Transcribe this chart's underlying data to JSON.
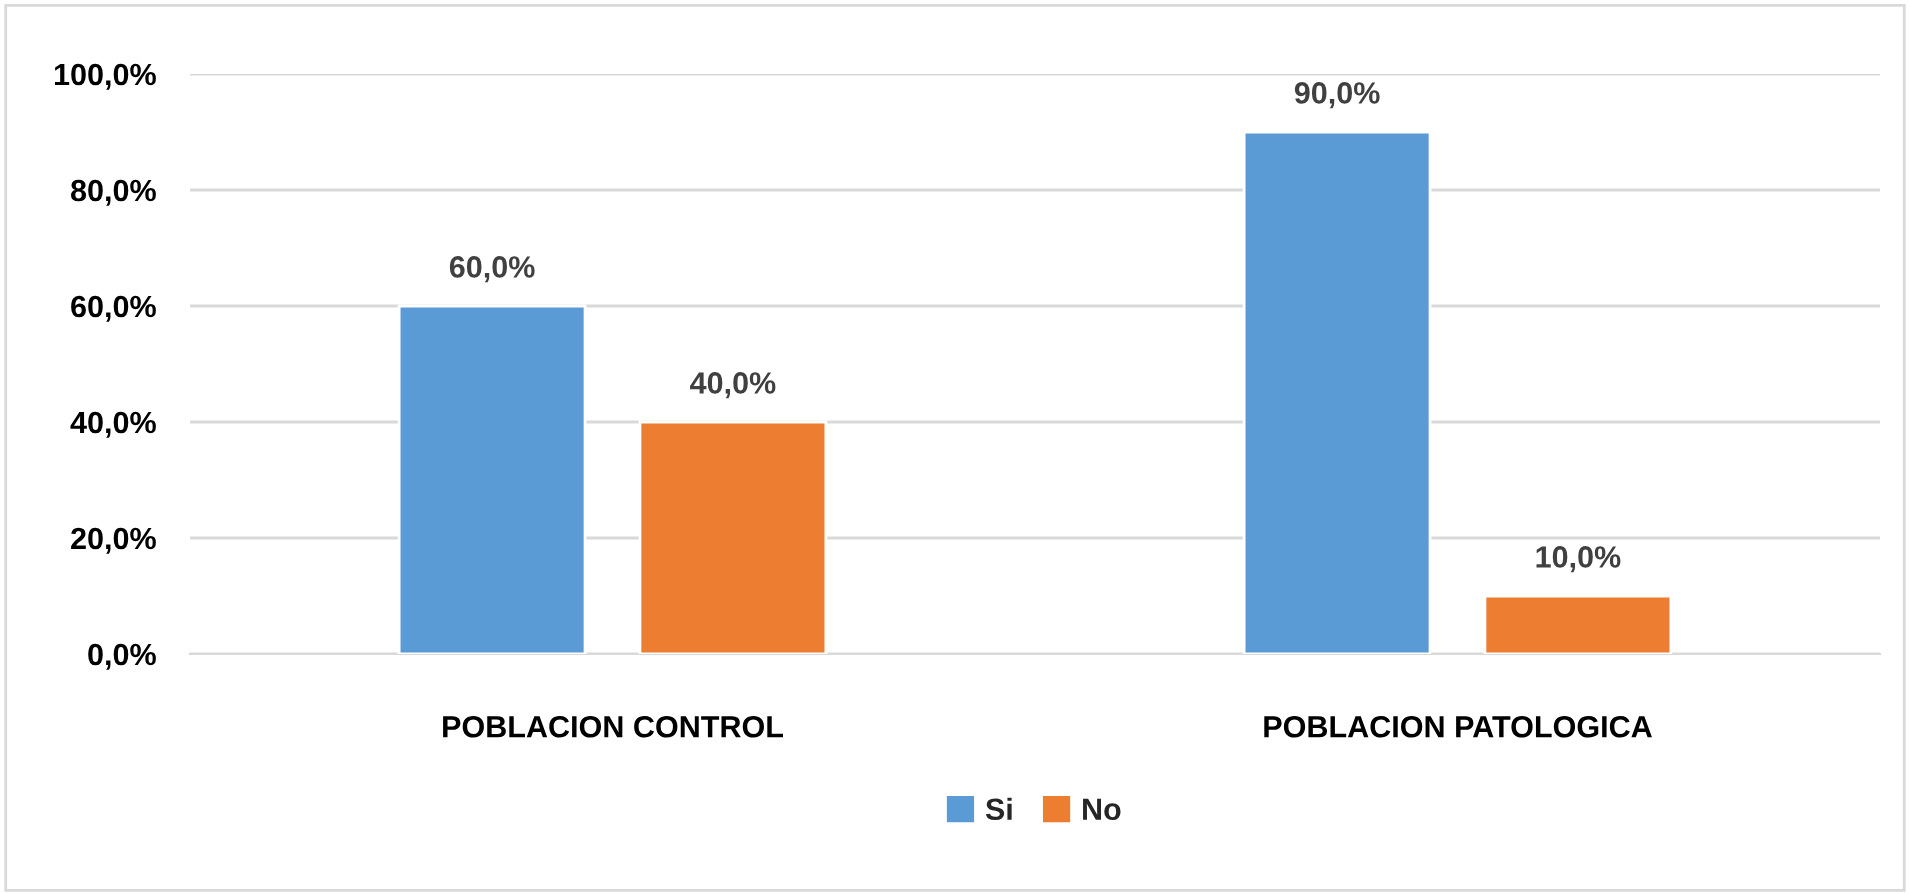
{
  "chart_data": {
    "type": "bar",
    "categories": [
      "POBLACION CONTROL",
      "POBLACION PATOLOGICA"
    ],
    "series": [
      {
        "name": "Si",
        "color": "#5b9bd5",
        "values": [
          60,
          90
        ],
        "value_labels": [
          "60,0%",
          "90,0%"
        ]
      },
      {
        "name": "No",
        "color": "#ed7d31",
        "values": [
          40,
          10
        ],
        "value_labels": [
          "40,0%",
          "10,0%"
        ]
      }
    ],
    "ylim": [
      0,
      100
    ],
    "yticks": [
      {
        "value": 0,
        "label": "0,0%"
      },
      {
        "value": 20,
        "label": "20,0%"
      },
      {
        "value": 40,
        "label": "40,0%"
      },
      {
        "value": 60,
        "label": "60,0%"
      },
      {
        "value": 80,
        "label": "80,0%"
      },
      {
        "value": 100,
        "label": "100,0%"
      }
    ],
    "grid": "y",
    "legend": "bottom"
  }
}
